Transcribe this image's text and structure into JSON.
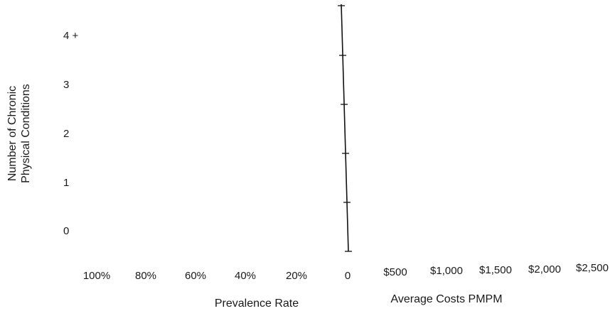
{
  "chart_data": {
    "type": "bar",
    "title": "",
    "ylabel_lines": [
      "Number of Chronic",
      "Physical Conditions"
    ],
    "categories": [
      "0",
      "1",
      "2",
      "3",
      "4 +"
    ],
    "left_panel": {
      "xlabel": "Prevalence Rate",
      "tick_labels": [
        "100%",
        "80%",
        "60%",
        "40%",
        "20%",
        "0"
      ],
      "xlim": [
        0,
        100
      ],
      "direction": "reversed",
      "values": []
    },
    "right_panel": {
      "xlabel": "Average Costs PMPM",
      "tick_labels": [
        "$500",
        "$1,000",
        "$1,500",
        "$2,000",
        "$2,500"
      ],
      "xlim": [
        0,
        2500
      ],
      "values": []
    },
    "grid": false,
    "legend": "none"
  }
}
